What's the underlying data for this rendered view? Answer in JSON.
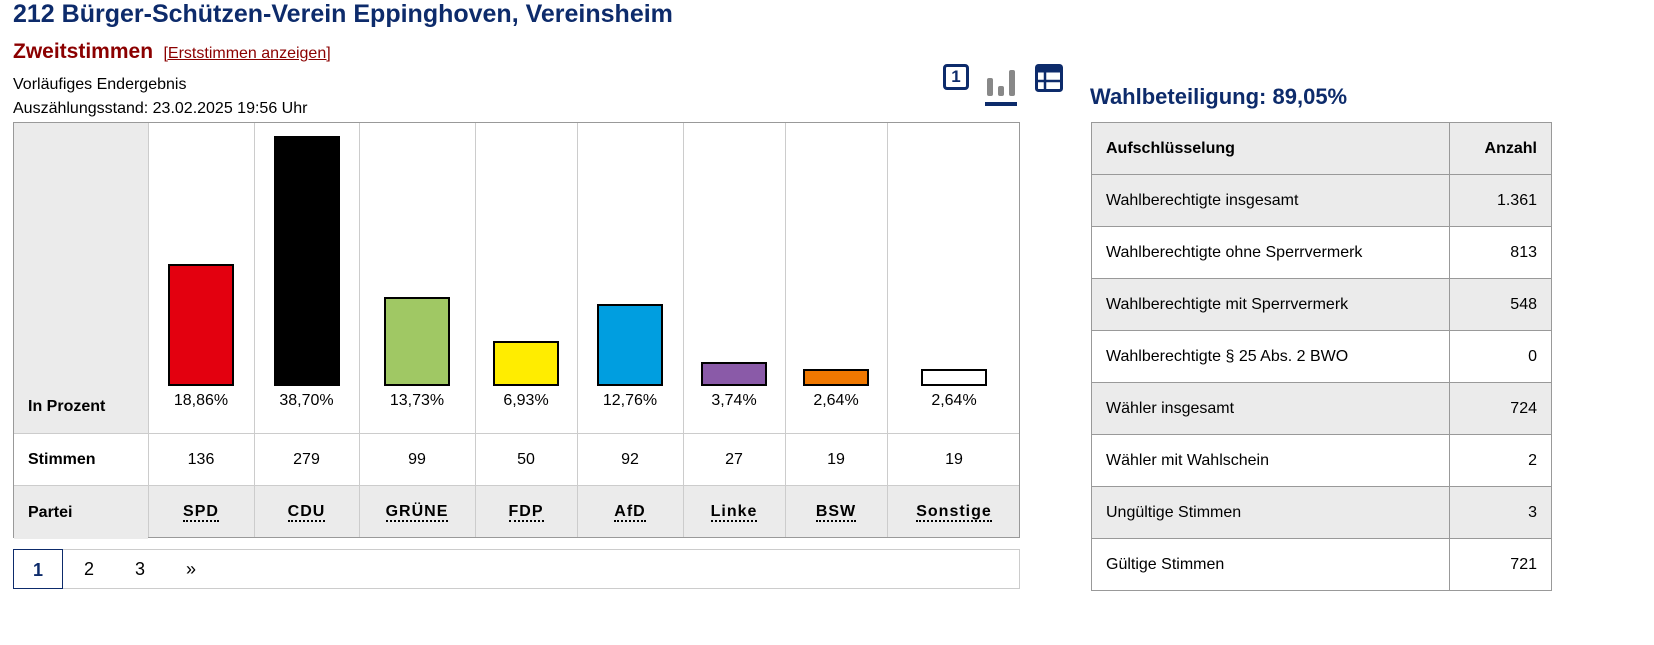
{
  "header": {
    "title": "212 Bürger-Schützen-Verein Eppinghoven, Vereinsheim",
    "section": "Zweitstimmen",
    "toggle_link": "[Erststimmen anzeigen]",
    "status_line1": "Vorläufiges Endergebnis",
    "status_line2": "Auszählungsstand: 23.02.2025 19:56 Uhr"
  },
  "view_icons": {
    "single_label": "1",
    "items": [
      "single-view-icon",
      "bar-chart-icon",
      "table-view-icon"
    ],
    "active": "bar-chart-icon"
  },
  "chart_data": {
    "type": "bar",
    "row_labels": {
      "percent": "In Prozent",
      "votes": "Stimmen",
      "party": "Partei"
    },
    "categories": [
      "SPD",
      "CDU",
      "GRÜNE",
      "FDP",
      "AfD",
      "Linke",
      "BSW",
      "Sonstige"
    ],
    "values": [
      18.86,
      38.7,
      13.73,
      6.93,
      12.76,
      3.74,
      2.64,
      2.64
    ],
    "value_labels": [
      "18,86%",
      "38,70%",
      "13,73%",
      "6,93%",
      "12,76%",
      "3,74%",
      "2,64%",
      "2,64%"
    ],
    "votes": [
      "136",
      "279",
      "99",
      "50",
      "92",
      "27",
      "19",
      "19"
    ],
    "colors": [
      "#e3000f",
      "#000000",
      "#a0c864",
      "#ffed00",
      "#009ee0",
      "#8a5aa8",
      "#f07800",
      "#ffffff"
    ],
    "ylim": [
      0,
      38.7
    ]
  },
  "pagination": {
    "pages": [
      "1",
      "2",
      "3"
    ],
    "next": "»",
    "active": "1"
  },
  "turnout": {
    "label": "Wahlbeteiligung: 89,05%"
  },
  "stats": {
    "headers": [
      "Aufschlüsselung",
      "Anzahl"
    ],
    "rows": [
      {
        "label": "Wahlberechtigte insgesamt",
        "value": "1.361"
      },
      {
        "label": "Wahlberechtigte ohne Sperrvermerk",
        "value": "813"
      },
      {
        "label": "Wahlberechtigte mit Sperrvermerk",
        "value": "548"
      },
      {
        "label": "Wahlberechtigte § 25 Abs. 2 BWO",
        "value": "0"
      },
      {
        "label": "Wähler insgesamt",
        "value": "724"
      },
      {
        "label": "Wähler mit Wahlschein",
        "value": "2"
      },
      {
        "label": "Ungültige Stimmen",
        "value": "3"
      },
      {
        "label": "Gültige Stimmen",
        "value": "721"
      }
    ]
  }
}
